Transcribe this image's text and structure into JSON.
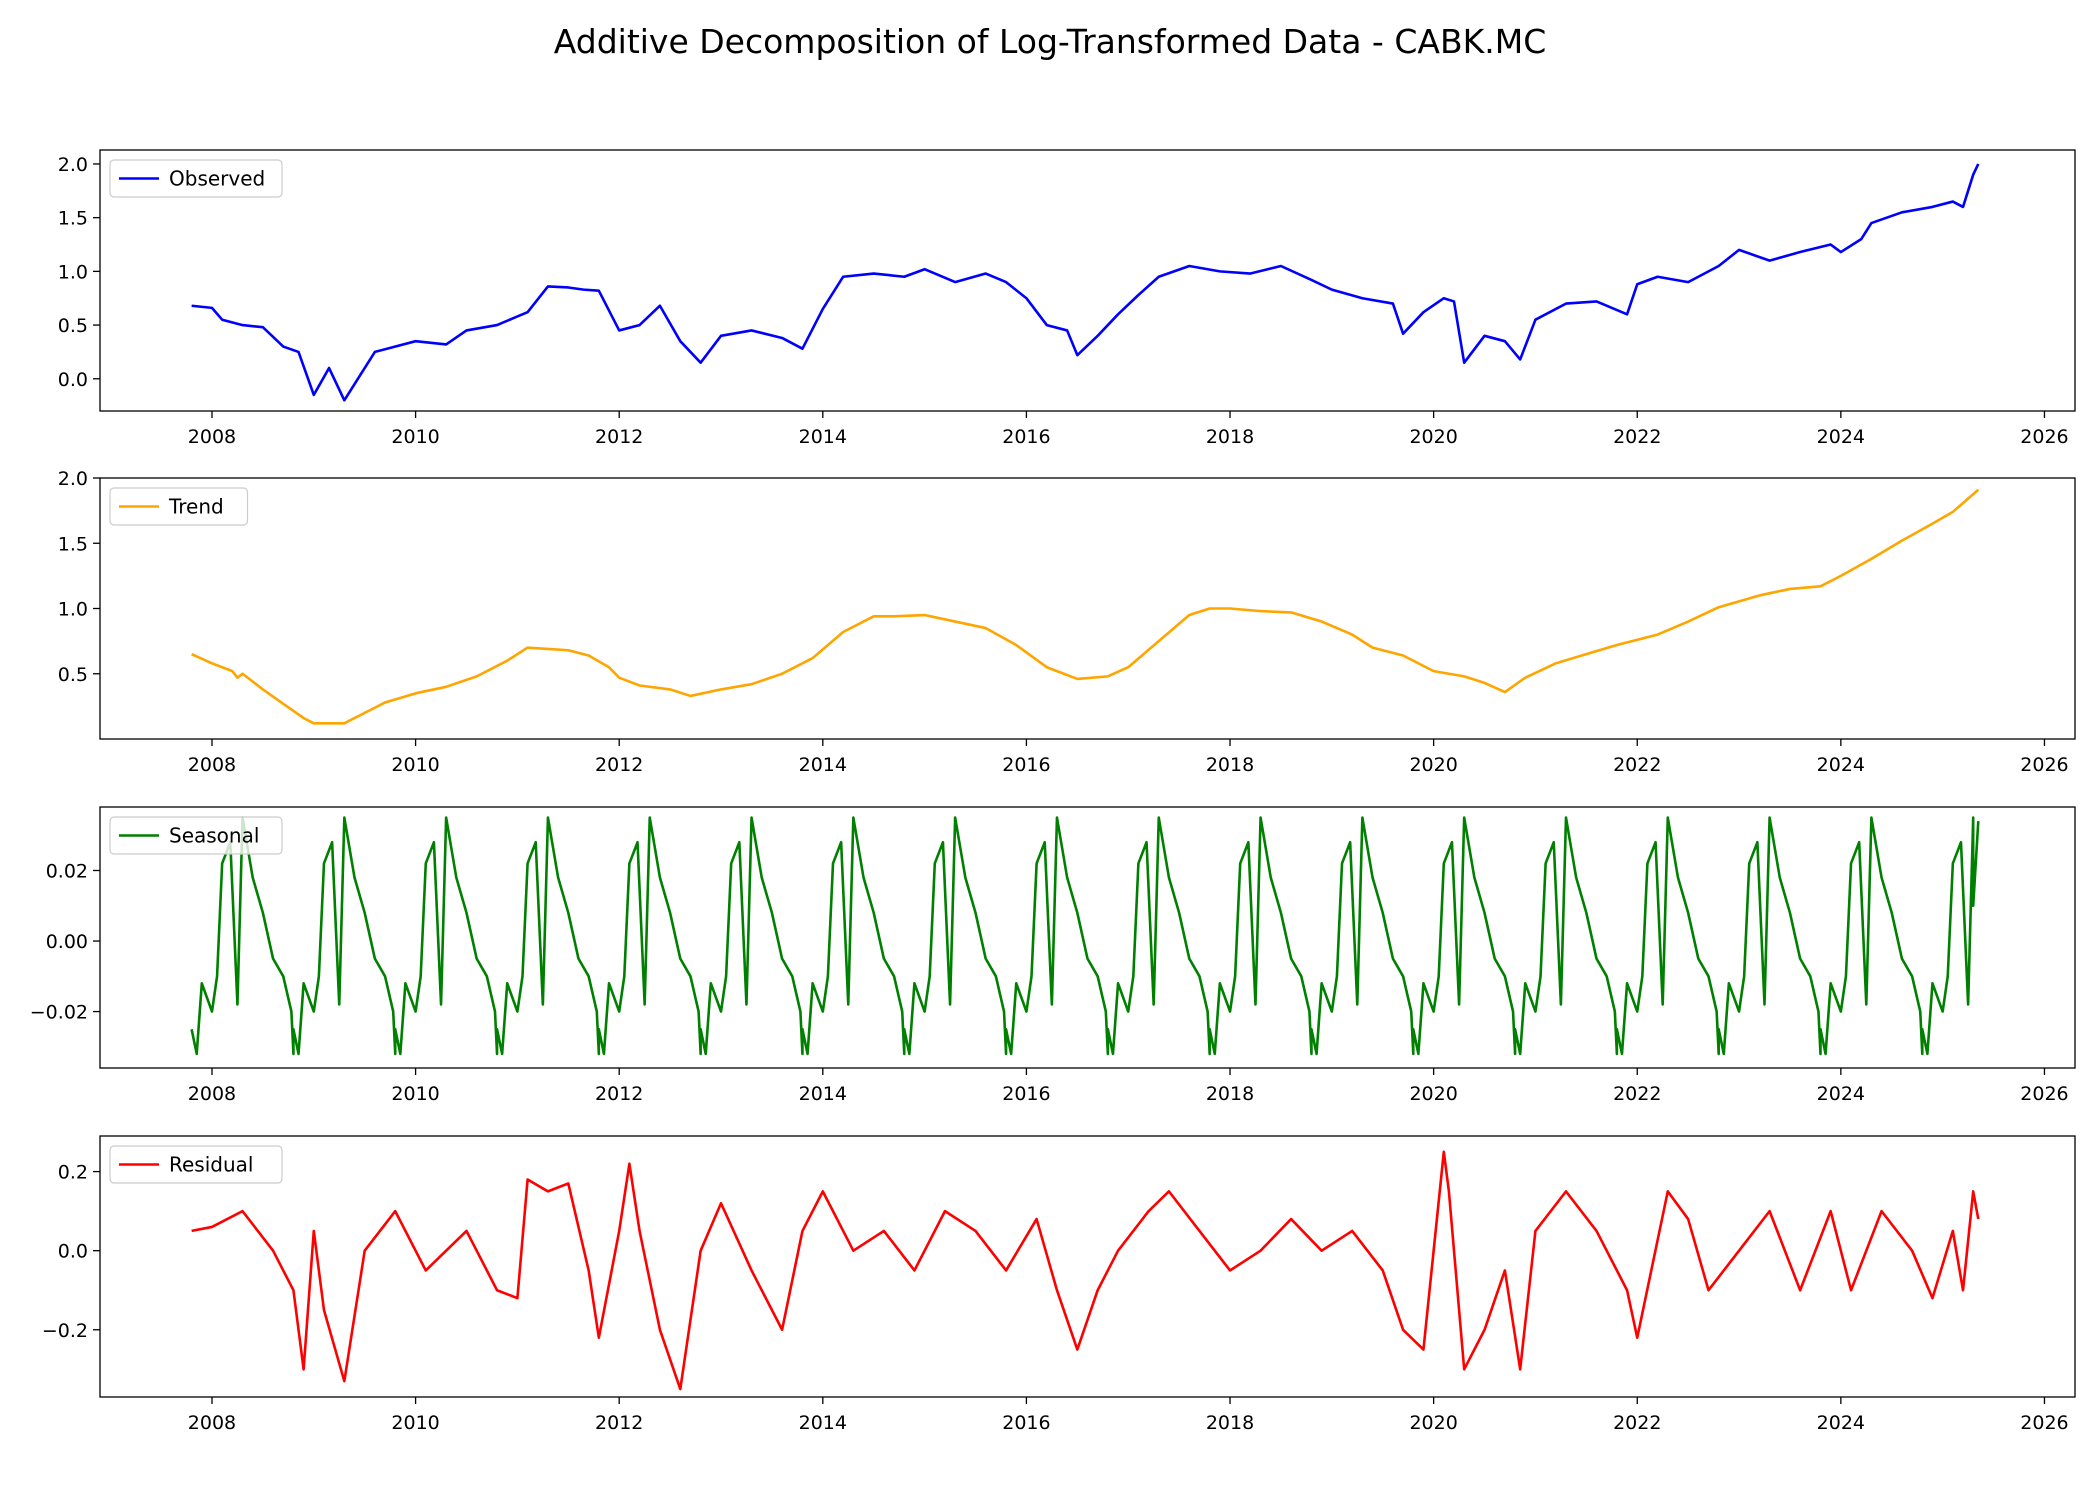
{
  "figure": {
    "title": "Additive Decomposition of Log-Transformed Data - CABK.MC"
  },
  "chart_data": [
    {
      "type": "line",
      "legend": "Observed",
      "legend_position": "upper-left",
      "color": "#0000ff",
      "xlim": [
        2006.9,
        2026.3
      ],
      "ylim": [
        -0.3,
        2.13
      ],
      "xticks": [
        2008,
        2010,
        2012,
        2014,
        2016,
        2018,
        2020,
        2022,
        2024,
        2026
      ],
      "yticks": [
        0.0,
        0.5,
        1.0,
        1.5,
        2.0
      ],
      "ytick_labels": [
        "0.0",
        "0.5",
        "1.0",
        "1.5",
        "2.0"
      ],
      "x": [
        2007.8,
        2008.0,
        2008.1,
        2008.3,
        2008.5,
        2008.7,
        2008.85,
        2009.0,
        2009.15,
        2009.3,
        2009.6,
        2010.0,
        2010.3,
        2010.5,
        2010.8,
        2011.0,
        2011.1,
        2011.3,
        2011.5,
        2011.65,
        2011.8,
        2012.0,
        2012.2,
        2012.4,
        2012.6,
        2012.8,
        2013.0,
        2013.3,
        2013.6,
        2013.8,
        2014.0,
        2014.2,
        2014.5,
        2014.8,
        2015.0,
        2015.3,
        2015.6,
        2015.8,
        2016.0,
        2016.2,
        2016.4,
        2016.5,
        2016.7,
        2016.9,
        2017.1,
        2017.3,
        2017.6,
        2017.9,
        2018.2,
        2018.5,
        2018.8,
        2019.0,
        2019.3,
        2019.6,
        2019.7,
        2019.9,
        2020.1,
        2020.2,
        2020.3,
        2020.5,
        2020.7,
        2020.85,
        2021.0,
        2021.3,
        2021.6,
        2021.9,
        2022.0,
        2022.2,
        2022.5,
        2022.8,
        2023.0,
        2023.3,
        2023.6,
        2023.9,
        2024.0,
        2024.2,
        2024.3,
        2024.6,
        2024.9,
        2025.1,
        2025.2,
        2025.3,
        2025.35
      ],
      "y": [
        0.68,
        0.66,
        0.55,
        0.5,
        0.48,
        0.3,
        0.25,
        -0.15,
        0.1,
        -0.2,
        0.25,
        0.35,
        0.32,
        0.45,
        0.5,
        0.58,
        0.62,
        0.86,
        0.85,
        0.83,
        0.82,
        0.45,
        0.5,
        0.68,
        0.35,
        0.15,
        0.4,
        0.45,
        0.38,
        0.28,
        0.65,
        0.95,
        0.98,
        0.95,
        1.02,
        0.9,
        0.98,
        0.9,
        0.75,
        0.5,
        0.45,
        0.22,
        0.4,
        0.6,
        0.78,
        0.95,
        1.05,
        1.0,
        0.98,
        1.05,
        0.92,
        0.83,
        0.75,
        0.7,
        0.42,
        0.62,
        0.75,
        0.72,
        0.15,
        0.4,
        0.35,
        0.18,
        0.55,
        0.7,
        0.72,
        0.6,
        0.88,
        0.95,
        0.9,
        1.05,
        1.2,
        1.1,
        1.18,
        1.25,
        1.18,
        1.3,
        1.45,
        1.55,
        1.6,
        1.65,
        1.6,
        1.9,
        2.0
      ]
    },
    {
      "type": "line",
      "legend": "Trend",
      "legend_position": "upper-left",
      "color": "#ffa500",
      "xlim": [
        2006.9,
        2026.3
      ],
      "ylim": [
        0.0,
        2.0
      ],
      "xticks": [
        2008,
        2010,
        2012,
        2014,
        2016,
        2018,
        2020,
        2022,
        2024,
        2026
      ],
      "yticks": [
        0.5,
        1.0,
        1.5,
        2.0
      ],
      "ytick_labels": [
        "0.5",
        "1.0",
        "1.5",
        "2.0"
      ],
      "x": [
        2007.8,
        2008.0,
        2008.2,
        2008.25,
        2008.3,
        2008.5,
        2008.7,
        2008.9,
        2009.0,
        2009.3,
        2009.5,
        2009.7,
        2010.0,
        2010.3,
        2010.6,
        2010.9,
        2011.1,
        2011.3,
        2011.5,
        2011.7,
        2011.9,
        2012.0,
        2012.2,
        2012.5,
        2012.7,
        2013.0,
        2013.3,
        2013.6,
        2013.9,
        2014.2,
        2014.5,
        2014.7,
        2015.0,
        2015.3,
        2015.6,
        2015.9,
        2016.2,
        2016.5,
        2016.8,
        2017.0,
        2017.3,
        2017.6,
        2017.8,
        2018.0,
        2018.3,
        2018.6,
        2018.9,
        2019.2,
        2019.4,
        2019.7,
        2020.0,
        2020.3,
        2020.5,
        2020.7,
        2020.9,
        2021.2,
        2021.5,
        2021.8,
        2022.2,
        2022.5,
        2022.8,
        2023.2,
        2023.5,
        2023.8,
        2024.0,
        2024.3,
        2024.6,
        2024.9,
        2025.1,
        2025.35
      ],
      "y": [
        0.65,
        0.58,
        0.52,
        0.47,
        0.5,
        0.38,
        0.27,
        0.16,
        0.12,
        0.12,
        0.2,
        0.28,
        0.35,
        0.4,
        0.48,
        0.6,
        0.7,
        0.69,
        0.68,
        0.64,
        0.55,
        0.47,
        0.41,
        0.38,
        0.33,
        0.38,
        0.42,
        0.5,
        0.62,
        0.82,
        0.94,
        0.94,
        0.95,
        0.9,
        0.85,
        0.72,
        0.55,
        0.46,
        0.48,
        0.55,
        0.75,
        0.95,
        1.0,
        1.0,
        0.98,
        0.97,
        0.9,
        0.8,
        0.7,
        0.64,
        0.52,
        0.48,
        0.43,
        0.36,
        0.47,
        0.58,
        0.65,
        0.72,
        0.8,
        0.9,
        1.01,
        1.1,
        1.15,
        1.17,
        1.25,
        1.38,
        1.52,
        1.65,
        1.74,
        1.91
      ]
    },
    {
      "type": "line",
      "legend": "Seasonal",
      "legend_position": "upper-left",
      "color": "#008000",
      "xlim": [
        2006.9,
        2026.3
      ],
      "ylim": [
        -0.036,
        0.038
      ],
      "xticks": [
        2008,
        2010,
        2012,
        2014,
        2016,
        2018,
        2020,
        2022,
        2024,
        2026
      ],
      "yticks": [
        -0.02,
        0.0,
        0.02
      ],
      "ytick_labels": [
        "−0.02",
        "0.00",
        "0.02"
      ],
      "x": [
        2007.8,
        2007.85,
        2007.9,
        2008.0,
        2008.05,
        2008.1,
        2008.18,
        2008.25,
        2008.3,
        2008.4,
        2008.5,
        2008.6,
        2008.7,
        2008.78,
        2008.8
      ],
      "y": [
        -0.025,
        -0.032,
        -0.012,
        -0.02,
        -0.01,
        0.022,
        0.028,
        -0.018,
        0.035,
        0.018,
        0.008,
        -0.005,
        -0.01,
        -0.02,
        -0.032
      ],
      "period": 1.0,
      "pattern_ends": 2025.35
    },
    {
      "type": "line",
      "legend": "Residual",
      "legend_position": "upper-left",
      "color": "#ff0000",
      "xlim": [
        2006.9,
        2026.3
      ],
      "ylim": [
        -0.37,
        0.29
      ],
      "xticks": [
        2008,
        2010,
        2012,
        2014,
        2016,
        2018,
        2020,
        2022,
        2024,
        2026
      ],
      "yticks": [
        -0.2,
        0.0,
        0.2
      ],
      "ytick_labels": [
        "−0.2",
        "0.0",
        "0.2"
      ],
      "x": [
        2007.8,
        2008.0,
        2008.3,
        2008.6,
        2008.8,
        2008.9,
        2009.0,
        2009.1,
        2009.3,
        2009.5,
        2009.8,
        2010.1,
        2010.3,
        2010.5,
        2010.8,
        2011.0,
        2011.1,
        2011.3,
        2011.5,
        2011.7,
        2011.8,
        2012.0,
        2012.1,
        2012.2,
        2012.4,
        2012.6,
        2012.8,
        2013.0,
        2013.3,
        2013.6,
        2013.8,
        2014.0,
        2014.3,
        2014.6,
        2014.9,
        2015.2,
        2015.5,
        2015.8,
        2016.1,
        2016.3,
        2016.5,
        2016.7,
        2016.9,
        2017.2,
        2017.4,
        2017.7,
        2018.0,
        2018.3,
        2018.6,
        2018.9,
        2019.2,
        2019.5,
        2019.7,
        2019.9,
        2020.0,
        2020.1,
        2020.15,
        2020.3,
        2020.5,
        2020.7,
        2020.85,
        2021.0,
        2021.3,
        2021.6,
        2021.9,
        2022.0,
        2022.3,
        2022.5,
        2022.7,
        2023.0,
        2023.3,
        2023.6,
        2023.9,
        2024.1,
        2024.4,
        2024.7,
        2024.9,
        2025.1,
        2025.2,
        2025.3,
        2025.35
      ],
      "y": [
        0.05,
        0.06,
        0.1,
        0.0,
        -0.1,
        -0.3,
        0.05,
        -0.15,
        -0.33,
        0.0,
        0.1,
        -0.05,
        0.0,
        0.05,
        -0.1,
        -0.12,
        0.18,
        0.15,
        0.17,
        -0.05,
        -0.22,
        0.05,
        0.22,
        0.05,
        -0.2,
        -0.35,
        0.0,
        0.12,
        -0.05,
        -0.2,
        0.05,
        0.15,
        0.0,
        0.05,
        -0.05,
        0.1,
        0.05,
        -0.05,
        0.08,
        -0.1,
        -0.25,
        -0.1,
        0.0,
        0.1,
        0.15,
        0.05,
        -0.05,
        0.0,
        0.08,
        0.0,
        0.05,
        -0.05,
        -0.2,
        -0.25,
        0.0,
        0.25,
        0.15,
        -0.3,
        -0.2,
        -0.05,
        -0.3,
        0.05,
        0.15,
        0.05,
        -0.1,
        -0.22,
        0.15,
        0.08,
        -0.1,
        0.0,
        0.1,
        -0.1,
        0.1,
        -0.1,
        0.1,
        0.0,
        -0.12,
        0.05,
        -0.1,
        0.15,
        0.08
      ]
    }
  ]
}
